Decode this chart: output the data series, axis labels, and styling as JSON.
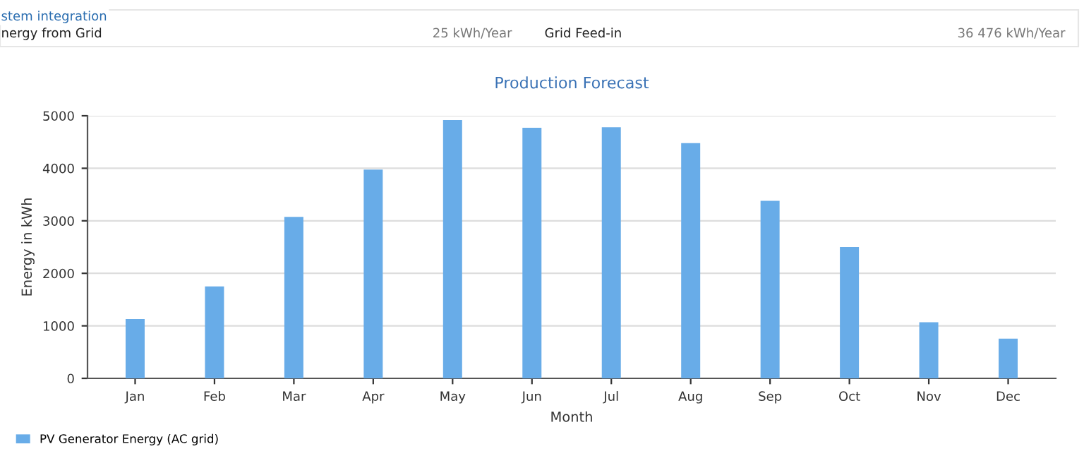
{
  "chart_data": {
    "type": "bar",
    "title": "Production Forecast",
    "xlabel": "Month",
    "ylabel": "Energy in kWh",
    "annotations": [
      "stem integration",
      "nergy from Grid",
      "25 kWh/Year",
      "Grid Feed-in",
      "36 476 kWh/Year"
    ],
    "categories": [
      "Jan",
      "Feb",
      "Mar",
      "Apr",
      "May",
      "Jun",
      "Jul",
      "Aug",
      "Sep",
      "Oct",
      "Nov",
      "Dec"
    ],
    "series": [
      {
        "name": "PV Generator Energy (AC grid)",
        "color": "#68ace8",
        "values": [
          1130,
          1750,
          3075,
          3975,
          4920,
          4770,
          4780,
          4480,
          3380,
          2500,
          1070,
          755
        ]
      }
    ],
    "ylim": [
      0,
      5000
    ],
    "yticks": [
      0,
      1000,
      2000,
      3000,
      4000,
      5000
    ],
    "grid": "y",
    "legend": "bottom left"
  }
}
